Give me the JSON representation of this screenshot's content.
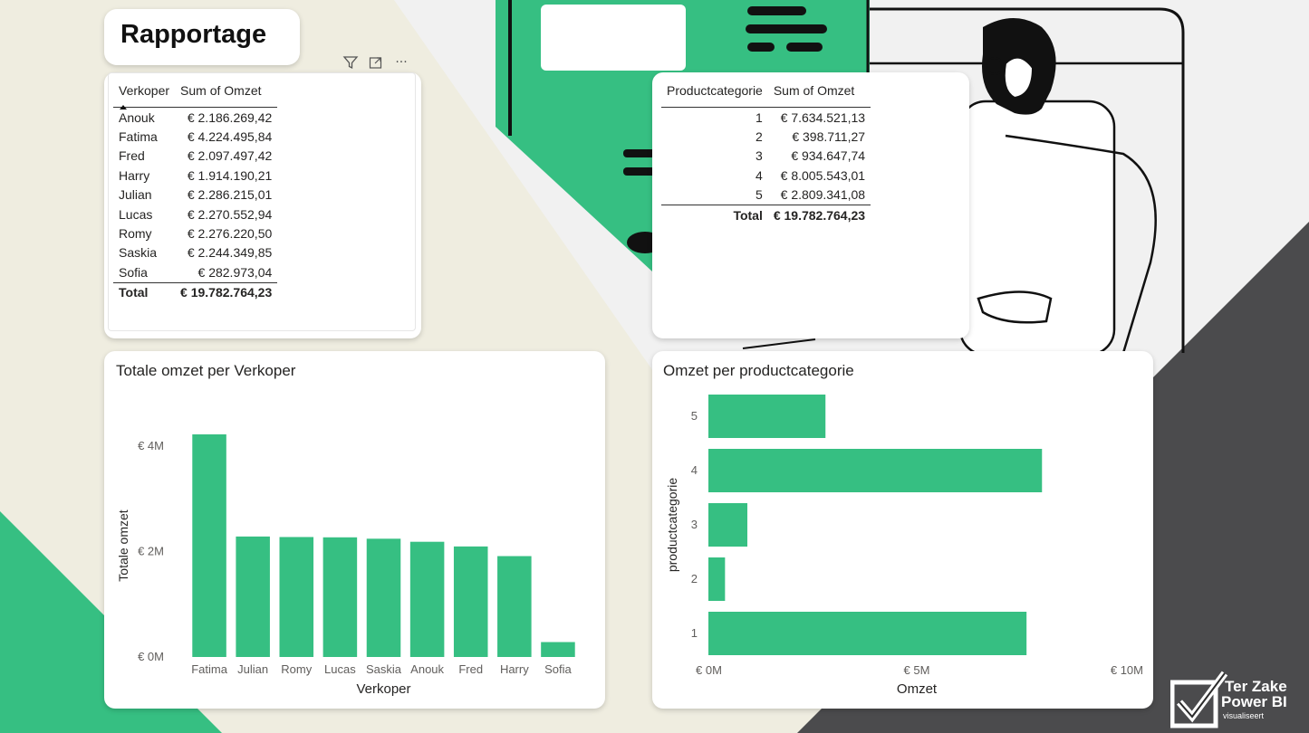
{
  "page": {
    "title": "Rapportage"
  },
  "colors": {
    "accent": "#36bf82",
    "dark": "#4b4b4d",
    "cream": "#efede0",
    "bar": "#36bf82"
  },
  "toolbar": {
    "filter_icon": "filter-icon",
    "focus_icon": "focus-mode-icon",
    "more_icon": "more-options-icon",
    "more_label": "···"
  },
  "seller_table": {
    "headers": [
      "Verkoper",
      "Sum of Omzet"
    ],
    "rows": [
      [
        "Anouk",
        "€ 2.186.269,42"
      ],
      [
        "Fatima",
        "€ 4.224.495,84"
      ],
      [
        "Fred",
        "€ 2.097.497,42"
      ],
      [
        "Harry",
        "€ 1.914.190,21"
      ],
      [
        "Julian",
        "€ 2.286.215,01"
      ],
      [
        "Lucas",
        "€ 2.270.552,94"
      ],
      [
        "Romy",
        "€ 2.276.220,50"
      ],
      [
        "Saskia",
        "€ 2.244.349,85"
      ],
      [
        "Sofia",
        "€ 282.973,04"
      ]
    ],
    "total_label": "Total",
    "total_value": "€ 19.782.764,23"
  },
  "category_table": {
    "headers": [
      "Productcategorie",
      "Sum of Omzet"
    ],
    "rows": [
      [
        "1",
        "€ 7.634.521,13"
      ],
      [
        "2",
        "€ 398.711,27"
      ],
      [
        "3",
        "€ 934.647,74"
      ],
      [
        "4",
        "€ 8.005.543,01"
      ],
      [
        "5",
        "€ 2.809.341,08"
      ]
    ],
    "total_label": "Total",
    "total_value": "€ 19.782.764,23"
  },
  "chart_data": [
    {
      "type": "bar",
      "title": "Totale omzet per Verkoper",
      "xlabel": "Verkoper",
      "ylabel": "Totale omzet",
      "categories": [
        "Fatima",
        "Julian",
        "Romy",
        "Lucas",
        "Saskia",
        "Anouk",
        "Fred",
        "Harry",
        "Sofia"
      ],
      "values": [
        4224495.84,
        2286215.01,
        2276220.5,
        2270552.94,
        2244349.85,
        2186269.42,
        2097497.42,
        1914190.21,
        282973.04
      ],
      "yticks": [
        {
          "value": 0,
          "label": "€ 0M"
        },
        {
          "value": 2000000,
          "label": "€ 2M"
        },
        {
          "value": 4000000,
          "label": "€ 4M"
        }
      ],
      "ylim": [
        0,
        4224495.84
      ],
      "grid": false
    },
    {
      "type": "bar",
      "orientation": "horizontal",
      "title": "Omzet per productcategorie",
      "xlabel": "Omzet",
      "ylabel": "productcategorie",
      "categories": [
        "5",
        "4",
        "3",
        "2",
        "1"
      ],
      "values": [
        2809341.08,
        8005543.01,
        934647.74,
        398711.27,
        7634521.13
      ],
      "xticks": [
        {
          "value": 0,
          "label": "€ 0M"
        },
        {
          "value": 5000000,
          "label": "€ 5M"
        },
        {
          "value": 10000000,
          "label": "€ 10M"
        }
      ],
      "xlim": [
        0,
        10000000
      ],
      "grid": false
    }
  ],
  "logo": {
    "line1": "Ter Zake",
    "line2": "Power BI",
    "line3": "visualiseert"
  }
}
